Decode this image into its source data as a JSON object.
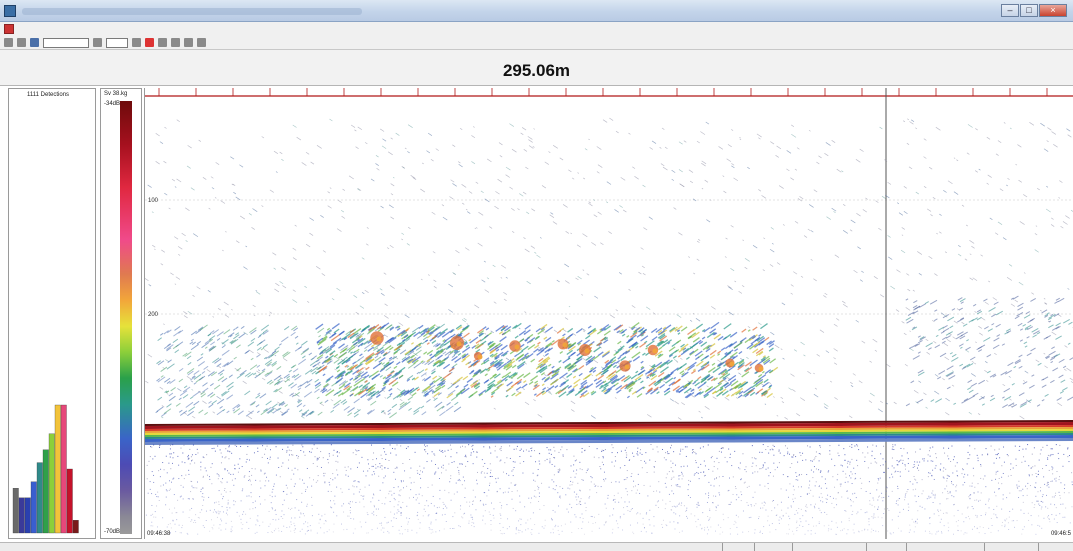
{
  "header": {
    "range": "295.06m"
  },
  "detections": {
    "label": "1111 Detections",
    "bars": [
      0.28,
      0.22,
      0.22,
      0.32,
      0.44,
      0.52,
      0.62,
      0.8,
      0.8,
      0.4,
      0.08
    ]
  },
  "scale": {
    "title": "Sv 38.kg",
    "max": "-34dB",
    "min": "-70dB"
  },
  "echogram": {
    "depth_ticks": [
      "100",
      "200"
    ],
    "start_time": "09:46:38",
    "end_time": "09:46:5"
  },
  "colors": {
    "bottom_line": "#a0141e",
    "top_axis": "#b01818",
    "hist_bars": [
      "#6a6a6a",
      "#3a3a9a",
      "#2a40b0",
      "#3a5ed0",
      "#2f8a8a",
      "#2fa04a",
      "#8ccf3a",
      "#f2c33a",
      "#e6487a",
      "#c5122a",
      "#7a1a1a"
    ]
  }
}
